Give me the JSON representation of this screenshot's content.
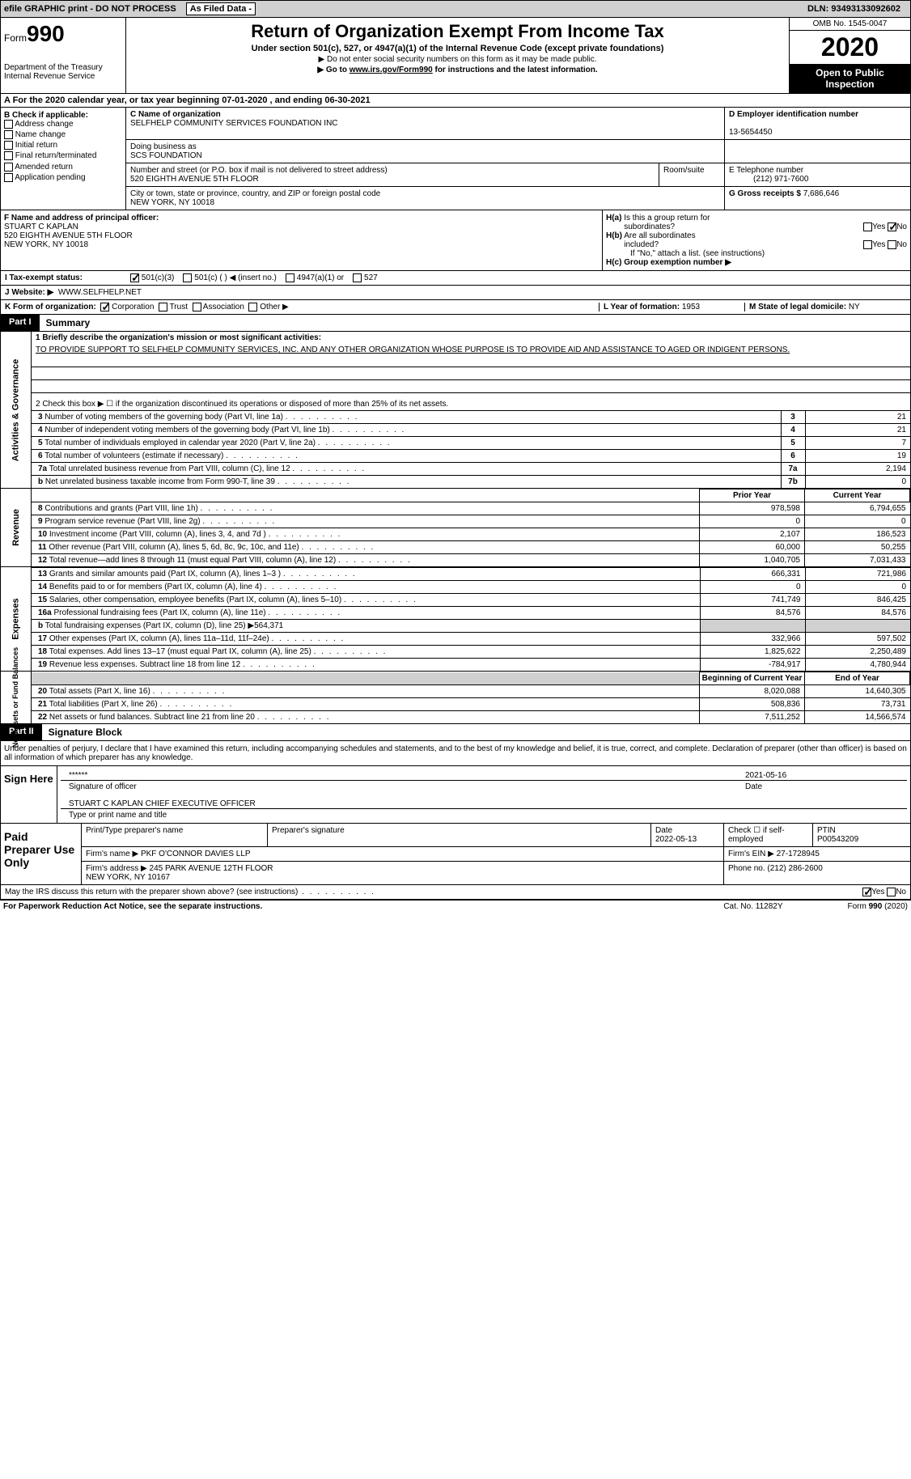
{
  "topbar": {
    "efile": "efile GRAPHIC print - DO NOT PROCESS",
    "asfiled": "As Filed Data -",
    "dln": "DLN: 93493133092602"
  },
  "header": {
    "form": "990",
    "form_prefix": "Form",
    "dept": "Department of the Treasury\nInternal Revenue Service",
    "title": "Return of Organization Exempt From Income Tax",
    "sub": "Under section 501(c), 527, or 4947(a)(1) of the Internal Revenue Code (except private foundations)",
    "sub2a": "▶ Do not enter social security numbers on this form as it may be made public.",
    "sub2b": "▶ Go to www.irs.gov/Form990 for instructions and the latest information.",
    "omb": "OMB No. 1545-0047",
    "year": "2020",
    "open": "Open to Public Inspection"
  },
  "sectionA": "A  For the 2020 calendar year, or tax year beginning 07-01-2020  , and ending 06-30-2021",
  "colB": {
    "title": "B Check if applicable:",
    "items": [
      "Address change",
      "Name change",
      "Initial return",
      "Final return/terminated",
      "Amended return",
      "Application pending"
    ]
  },
  "colC": {
    "name_label": "C Name of organization",
    "name": "SELFHELP COMMUNITY SERVICES FOUNDATION INC",
    "dba_label": "Doing business as",
    "dba": "SCS FOUNDATION",
    "street_label": "Number and street (or P.O. box if mail is not delivered to street address)",
    "street": "520 EIGHTH AVENUE 5TH FLOOR",
    "room_label": "Room/suite",
    "city_label": "City or town, state or province, country, and ZIP or foreign postal code",
    "city": "NEW YORK, NY  10018"
  },
  "colD": {
    "ein_label": "D Employer identification number",
    "ein": "13-5654450",
    "phone_label": "E Telephone number",
    "phone": "(212) 971-7600",
    "gross_label": "G Gross receipts $",
    "gross": "7,686,646"
  },
  "colF": {
    "label": "F  Name and address of principal officer:",
    "name": "STUART C KAPLAN",
    "street": "520 EIGHTH AVENUE 5TH FLOOR",
    "city": "NEW YORK, NY  10018"
  },
  "colH": {
    "a": "H(a)  Is this a group return for subordinates?",
    "b": "H(b)  Are all subordinates included?",
    "note": "If \"No,\" attach a list. (see instructions)",
    "c": "H(c)  Group exemption number ▶"
  },
  "rowI": {
    "label": "I  Tax-exempt status:",
    "opts": [
      "501(c)(3)",
      "501(c) (  ) ◀ (insert no.)",
      "4947(a)(1) or",
      "527"
    ]
  },
  "rowJ": {
    "label": "J  Website: ▶",
    "val": "WWW.SELFHELP.NET"
  },
  "rowK": {
    "label": "K Form of organization:",
    "opts": [
      "Corporation",
      "Trust",
      "Association",
      "Other ▶"
    ],
    "l_label": "L Year of formation:",
    "l_val": "1953",
    "m_label": "M State of legal domicile:",
    "m_val": "NY"
  },
  "part1": {
    "label": "Part I",
    "title": "Summary"
  },
  "activities": {
    "label": "Activities & Governance",
    "line1": "1 Briefly describe the organization's mission or most significant activities:",
    "mission": "TO PROVIDE SUPPORT TO SELFHELP COMMUNITY SERVICES, INC. AND ANY OTHER ORGANIZATION WHOSE PURPOSE IS TO PROVIDE AID AND ASSISTANCE TO AGED OR INDIGENT PERSONS.",
    "line2": "2  Check this box ▶ ☐ if the organization discontinued its operations or disposed of more than 25% of its net assets.",
    "rows": [
      {
        "n": "3",
        "desc": "Number of voting members of the governing body (Part VI, line 1a)",
        "col": "3",
        "v": "21"
      },
      {
        "n": "4",
        "desc": "Number of independent voting members of the governing body (Part VI, line 1b)",
        "col": "4",
        "v": "21"
      },
      {
        "n": "5",
        "desc": "Total number of individuals employed in calendar year 2020 (Part V, line 2a)",
        "col": "5",
        "v": "7"
      },
      {
        "n": "6",
        "desc": "Total number of volunteers (estimate if necessary)",
        "col": "6",
        "v": "19"
      },
      {
        "n": "7a",
        "desc": "Total unrelated business revenue from Part VIII, column (C), line 12",
        "col": "7a",
        "v": "2,194"
      },
      {
        "n": "b",
        "desc": "Net unrelated business taxable income from Form 990-T, line 39",
        "col": "7b",
        "v": "0"
      }
    ]
  },
  "revenue": {
    "label": "Revenue",
    "header_prior": "Prior Year",
    "header_current": "Current Year",
    "rows": [
      {
        "n": "8",
        "desc": "Contributions and grants (Part VIII, line 1h)",
        "p": "978,598",
        "c": "6,794,655"
      },
      {
        "n": "9",
        "desc": "Program service revenue (Part VIII, line 2g)",
        "p": "0",
        "c": "0"
      },
      {
        "n": "10",
        "desc": "Investment income (Part VIII, column (A), lines 3, 4, and 7d )",
        "p": "2,107",
        "c": "186,523"
      },
      {
        "n": "11",
        "desc": "Other revenue (Part VIII, column (A), lines 5, 6d, 8c, 9c, 10c, and 11e)",
        "p": "60,000",
        "c": "50,255"
      },
      {
        "n": "12",
        "desc": "Total revenue—add lines 8 through 11 (must equal Part VIII, column (A), line 12)",
        "p": "1,040,705",
        "c": "7,031,433"
      }
    ]
  },
  "expenses": {
    "label": "Expenses",
    "rows": [
      {
        "n": "13",
        "desc": "Grants and similar amounts paid (Part IX, column (A), lines 1–3 )",
        "p": "666,331",
        "c": "721,986"
      },
      {
        "n": "14",
        "desc": "Benefits paid to or for members (Part IX, column (A), line 4)",
        "p": "0",
        "c": "0"
      },
      {
        "n": "15",
        "desc": "Salaries, other compensation, employee benefits (Part IX, column (A), lines 5–10)",
        "p": "741,749",
        "c": "846,425"
      },
      {
        "n": "16a",
        "desc": "Professional fundraising fees (Part IX, column (A), line 11e)",
        "p": "84,576",
        "c": "84,576"
      },
      {
        "n": "b",
        "desc": "Total fundraising expenses (Part IX, column (D), line 25) ▶564,371",
        "p": "",
        "c": "",
        "shaded": true
      },
      {
        "n": "17",
        "desc": "Other expenses (Part IX, column (A), lines 11a–11d, 11f–24e)",
        "p": "332,966",
        "c": "597,502"
      },
      {
        "n": "18",
        "desc": "Total expenses. Add lines 13–17 (must equal Part IX, column (A), line 25)",
        "p": "1,825,622",
        "c": "2,250,489"
      },
      {
        "n": "19",
        "desc": "Revenue less expenses. Subtract line 18 from line 12",
        "p": "-784,917",
        "c": "4,780,944"
      }
    ]
  },
  "netassets": {
    "label": "Net Assets or Fund Balances",
    "header_begin": "Beginning of Current Year",
    "header_end": "End of Year",
    "rows": [
      {
        "n": "20",
        "desc": "Total assets (Part X, line 16)",
        "p": "8,020,088",
        "c": "14,640,305"
      },
      {
        "n": "21",
        "desc": "Total liabilities (Part X, line 26)",
        "p": "508,836",
        "c": "73,731"
      },
      {
        "n": "22",
        "desc": "Net assets or fund balances. Subtract line 21 from line 20",
        "p": "7,511,252",
        "c": "14,566,574"
      }
    ]
  },
  "part2": {
    "label": "Part II",
    "title": "Signature Block",
    "penalty": "Under penalties of perjury, I declare that I have examined this return, including accompanying schedules and statements, and to the best of my knowledge and belief, it is true, correct, and complete. Declaration of preparer (other than officer) is based on all information of which preparer has any knowledge."
  },
  "sign": {
    "label": "Sign Here",
    "stars": "******",
    "sig_label": "Signature of officer",
    "date": "2021-05-16",
    "date_label": "Date",
    "name": "STUART C KAPLAN  CHIEF EXECUTIVE OFFICER",
    "name_label": "Type or print name and title"
  },
  "preparer": {
    "label": "Paid Preparer Use Only",
    "print_label": "Print/Type preparer's name",
    "sig_label": "Preparer's signature",
    "date_label": "Date",
    "date": "2022-05-13",
    "check_label": "Check ☐ if self-employed",
    "ptin_label": "PTIN",
    "ptin": "P00543209",
    "firm_name_label": "Firm's name     ▶",
    "firm_name": "PKF O'CONNOR DAVIES LLP",
    "firm_ein_label": "Firm's EIN ▶",
    "firm_ein": "27-1728945",
    "firm_addr_label": "Firm's address ▶",
    "firm_addr": "245 PARK AVENUE 12TH FLOOR\nNEW YORK, NY  10167",
    "phone_label": "Phone no.",
    "phone": "(212) 286-2600"
  },
  "discuss": "May the IRS discuss this return with the preparer shown above? (see instructions)",
  "footer": {
    "paperwork": "For Paperwork Reduction Act Notice, see the separate instructions.",
    "cat": "Cat. No. 11282Y",
    "form": "Form 990 (2020)"
  }
}
